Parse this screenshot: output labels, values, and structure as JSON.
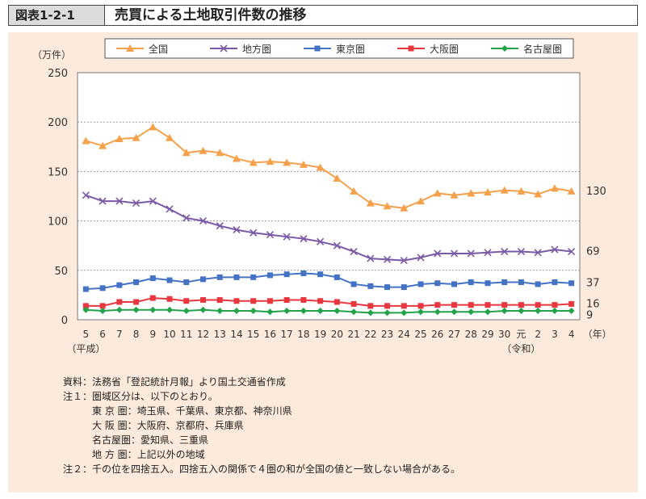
{
  "header": {
    "figure_label": "図表1-2-1",
    "title": "売買による土地取引件数の推移"
  },
  "chart_data": {
    "type": "line",
    "ylabel": "（万件）",
    "xlabel": "（年）",
    "ylim": [
      0,
      250
    ],
    "yticks": [
      0,
      50,
      100,
      150,
      200,
      250
    ],
    "grid": true,
    "legend_position": "top",
    "categories": [
      "5",
      "6",
      "7",
      "8",
      "9",
      "10",
      "11",
      "12",
      "13",
      "14",
      "15",
      "16",
      "17",
      "18",
      "19",
      "20",
      "21",
      "22",
      "23",
      "24",
      "25",
      "26",
      "27",
      "28",
      "29",
      "30",
      "元",
      "2",
      "3",
      "4"
    ],
    "era_labels": [
      {
        "text": "（平成）",
        "at_index": 0
      },
      {
        "text": "（令和）",
        "at_index": 26
      }
    ],
    "series": [
      {
        "name": "全国",
        "color": "#f5a04a",
        "marker": "triangle",
        "values": [
          181,
          176,
          183,
          184,
          195,
          184,
          169,
          171,
          169,
          163,
          159,
          160,
          159,
          157,
          154,
          143,
          130,
          118,
          115,
          113,
          120,
          128,
          126,
          128,
          129,
          131,
          130,
          127,
          133,
          130
        ],
        "end_label": "130"
      },
      {
        "name": "地方圏",
        "color": "#7a5aa6",
        "marker": "x",
        "values": [
          126,
          120,
          120,
          118,
          120,
          112,
          103,
          100,
          95,
          91,
          88,
          86,
          84,
          82,
          79,
          75,
          69,
          62,
          61,
          60,
          63,
          67,
          67,
          67,
          68,
          69,
          69,
          68,
          71,
          69
        ],
        "end_label": "69"
      },
      {
        "name": "東京圏",
        "color": "#4472c4",
        "marker": "square",
        "values": [
          31,
          32,
          35,
          38,
          42,
          40,
          38,
          41,
          43,
          43,
          43,
          45,
          46,
          47,
          46,
          43,
          36,
          34,
          33,
          33,
          36,
          37,
          36,
          38,
          37,
          38,
          38,
          36,
          38,
          37
        ],
        "end_label": "37"
      },
      {
        "name": "大阪圏",
        "color": "#e8373f",
        "marker": "square",
        "values": [
          14,
          14,
          18,
          18,
          22,
          21,
          19,
          20,
          20,
          19,
          19,
          19,
          20,
          20,
          19,
          18,
          16,
          14,
          14,
          14,
          14,
          15,
          15,
          15,
          15,
          15,
          15,
          15,
          15,
          16
        ],
        "end_label": "16"
      },
      {
        "name": "名古屋圏",
        "color": "#22a34a",
        "marker": "diamond",
        "values": [
          10,
          9,
          10,
          10,
          10,
          10,
          9,
          10,
          9,
          9,
          9,
          8,
          9,
          9,
          9,
          9,
          8,
          7,
          7,
          7,
          8,
          8,
          8,
          8,
          8,
          9,
          9,
          9,
          9,
          9
        ],
        "end_label": "9"
      }
    ]
  },
  "notes": [
    "資料：法務省「登記統計月報」より国土交通省作成",
    "注１：圏域区分は、以下のとおり。",
    "　　　東 京 圏：埼玉県、千葉県、東京都、神奈川県",
    "　　　大 阪 圏：大阪府、京都府、兵庫県",
    "　　　名古屋圏：愛知県、三重県",
    "　　　地 方 圏：上記以外の地域",
    "注２：千の位を四捨五入。四捨五入の関係で４圏の和が全国の値と一致しない場合がある。"
  ]
}
